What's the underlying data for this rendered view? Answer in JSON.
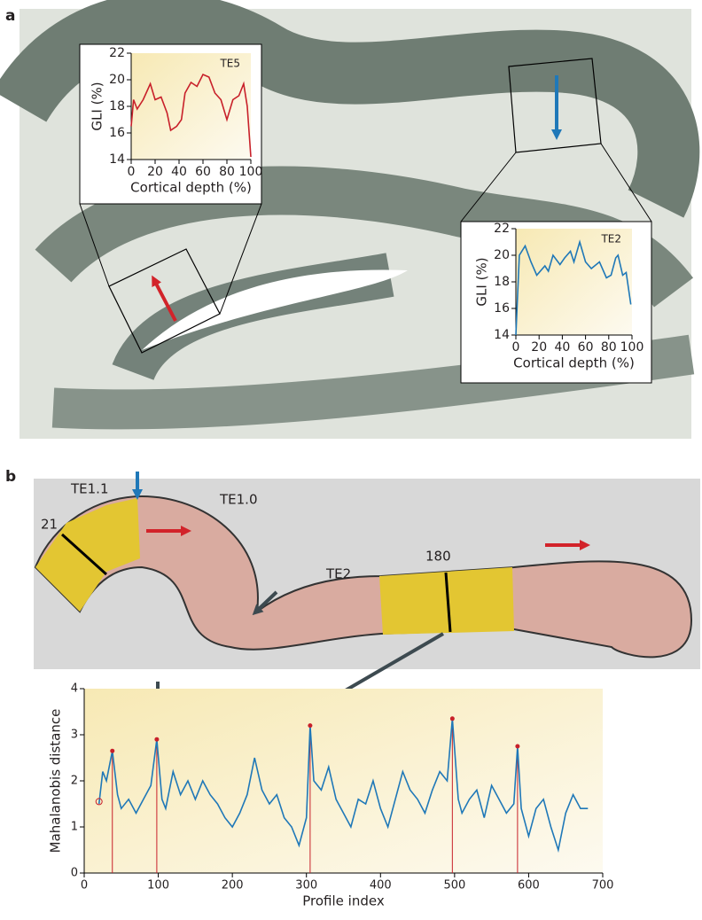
{
  "panel_labels": [
    "a",
    "b"
  ],
  "region_labels": [
    "21",
    "TE1.1",
    "TE1.0",
    "TE2",
    "180"
  ],
  "chart_data": [
    {
      "type": "line",
      "annotation": "TE5",
      "xlabel": "Cortical depth (%)",
      "ylabel": "GLI (%)",
      "color": "#c8202a",
      "xlim": [
        0,
        100
      ],
      "xticks": [
        0,
        20,
        40,
        60,
        80,
        100
      ],
      "ylim": [
        14,
        22
      ],
      "yticks": [
        14,
        16,
        18,
        20,
        22
      ],
      "x": [
        0,
        2,
        5,
        10,
        16,
        20,
        25,
        30,
        33,
        38,
        42,
        45,
        50,
        55,
        60,
        65,
        70,
        75,
        80,
        85,
        90,
        94,
        97,
        100
      ],
      "values": [
        16.5,
        18.5,
        17.8,
        18.5,
        19.7,
        18.5,
        18.7,
        17.5,
        16.2,
        16.5,
        17,
        19,
        19.8,
        19.5,
        20.4,
        20.2,
        19,
        18.5,
        17,
        18.5,
        18.8,
        19.7,
        18,
        14.2
      ]
    },
    {
      "type": "line",
      "annotation": "TE2",
      "xlabel": "Cortical depth (%)",
      "ylabel": "GLI (%)",
      "color": "#1f78b8",
      "xlim": [
        0,
        100
      ],
      "xticks": [
        0,
        20,
        40,
        60,
        80,
        100
      ],
      "ylim": [
        14,
        22
      ],
      "yticks": [
        14,
        16,
        18,
        20,
        22
      ],
      "x": [
        0,
        3,
        8,
        13,
        18,
        25,
        28,
        32,
        38,
        42,
        47,
        50,
        55,
        60,
        65,
        72,
        78,
        82,
        86,
        88,
        92,
        95,
        99
      ],
      "values": [
        14,
        20,
        20.7,
        19.5,
        18.5,
        19.2,
        18.8,
        20,
        19.3,
        19.8,
        20.3,
        19.5,
        21,
        19.5,
        19,
        19.5,
        18.3,
        18.5,
        19.8,
        20,
        18.5,
        18.7,
        16.3
      ]
    },
    {
      "type": "line",
      "xlabel": "Profile index",
      "ylabel": "Mahalanobis distance",
      "color": "#1f78b8",
      "peak_color": "#c8202a",
      "xlim": [
        0,
        700
      ],
      "xticks": [
        0,
        100,
        200,
        300,
        400,
        500,
        600,
        700
      ],
      "ylim": [
        0,
        4
      ],
      "yticks": [
        0,
        1,
        2,
        3,
        4
      ],
      "x": [
        20,
        25,
        30,
        38,
        45,
        50,
        60,
        70,
        80,
        90,
        98,
        105,
        110,
        120,
        130,
        140,
        150,
        160,
        170,
        180,
        190,
        200,
        210,
        220,
        230,
        240,
        250,
        260,
        270,
        280,
        290,
        300,
        305,
        310,
        320,
        330,
        340,
        350,
        360,
        370,
        380,
        390,
        400,
        410,
        420,
        430,
        440,
        450,
        460,
        470,
        480,
        490,
        497,
        505,
        510,
        520,
        530,
        540,
        550,
        560,
        570,
        580,
        585,
        590,
        600,
        610,
        620,
        630,
        640,
        650,
        660,
        670,
        680
      ],
      "values": [
        1.5,
        2.2,
        2.0,
        2.65,
        1.7,
        1.4,
        1.6,
        1.3,
        1.6,
        1.9,
        2.9,
        1.6,
        1.4,
        2.2,
        1.7,
        2.0,
        1.6,
        2.0,
        1.7,
        1.5,
        1.2,
        1.0,
        1.3,
        1.7,
        2.5,
        1.8,
        1.5,
        1.7,
        1.2,
        1.0,
        0.6,
        1.2,
        3.2,
        2.0,
        1.8,
        2.3,
        1.6,
        1.3,
        1.0,
        1.6,
        1.5,
        2.0,
        1.4,
        1.0,
        1.6,
        2.2,
        1.8,
        1.6,
        1.3,
        1.8,
        2.2,
        2.0,
        3.35,
        1.6,
        1.3,
        1.6,
        1.8,
        1.2,
        1.9,
        1.6,
        1.3,
        1.5,
        2.75,
        1.4,
        0.8,
        1.4,
        1.6,
        1.0,
        0.5,
        1.3,
        1.7,
        1.4,
        1.4
      ],
      "peak_x": [
        38,
        98,
        305,
        497,
        585
      ],
      "peak_values": [
        2.65,
        2.9,
        3.2,
        3.35,
        2.75
      ],
      "open_marker": {
        "x": 20,
        "value": 1.55
      }
    }
  ]
}
